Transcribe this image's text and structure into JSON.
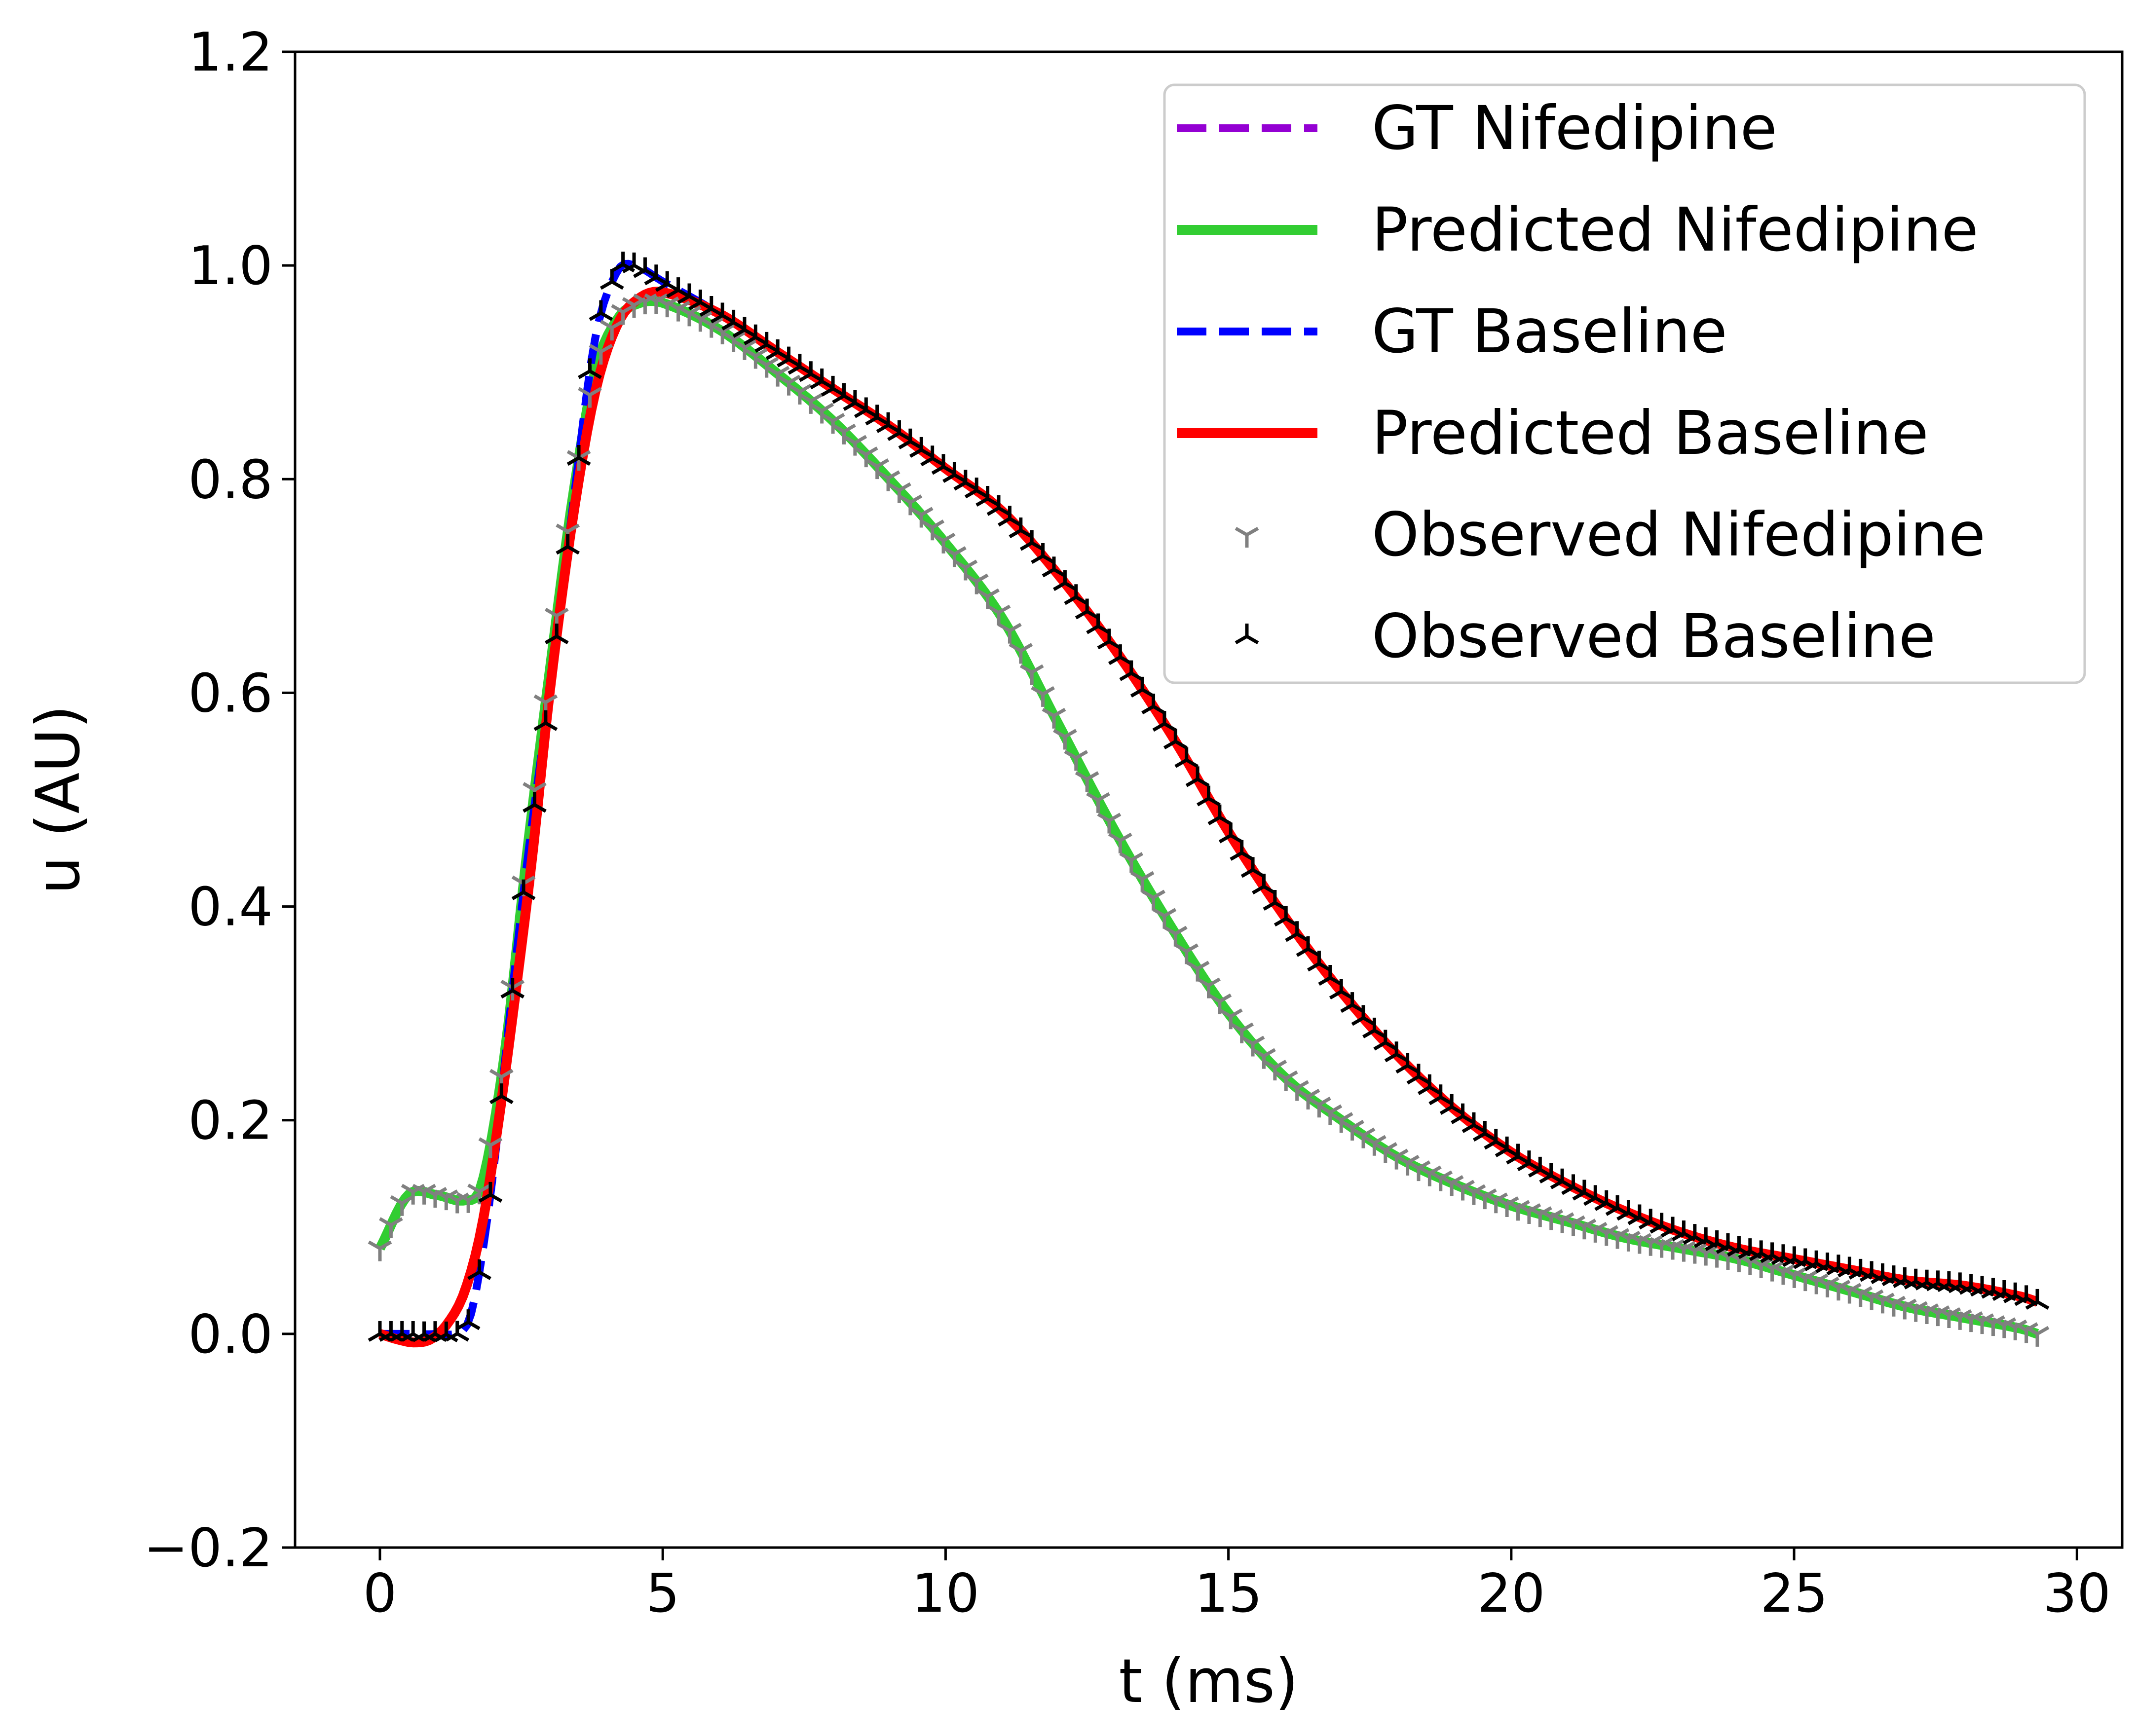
{
  "chart_data": {
    "type": "line",
    "xlabel": "t (ms)",
    "ylabel": "u (AU)",
    "xlim": [
      -1.5,
      30.8
    ],
    "ylim": [
      -0.2,
      1.2
    ],
    "xticks": [
      0,
      5,
      10,
      15,
      20,
      25,
      30
    ],
    "xtick_labels": [
      "0",
      "5",
      "10",
      "15",
      "20",
      "25",
      "30"
    ],
    "yticks": [
      -0.2,
      0.0,
      0.2,
      0.4,
      0.6,
      0.8,
      1.0,
      1.2
    ],
    "ytick_labels": [
      "−0.2",
      "0.0",
      "0.2",
      "0.4",
      "0.6",
      "0.8",
      "1.0",
      "1.2"
    ],
    "grid": false,
    "legend_position": "top-right",
    "series": [
      {
        "name": "GT Nifedipine",
        "style": "dashed",
        "color": "#9400D3",
        "x": [
          0,
          0.5,
          1,
          1.5,
          1.8,
          2.2,
          2.6,
          3,
          3.4,
          3.8,
          4.2,
          4.6,
          5,
          6,
          7,
          8,
          9,
          10,
          11,
          12,
          13,
          14,
          15,
          16,
          17,
          18,
          19,
          20,
          21,
          22,
          23,
          24,
          25,
          26,
          27,
          28,
          29,
          29.3
        ],
        "y": [
          0.08,
          0.13,
          0.13,
          0.125,
          0.14,
          0.26,
          0.45,
          0.62,
          0.78,
          0.9,
          0.95,
          0.965,
          0.965,
          0.94,
          0.9,
          0.855,
          0.8,
          0.74,
          0.67,
          0.57,
          0.47,
          0.38,
          0.3,
          0.24,
          0.2,
          0.165,
          0.14,
          0.12,
          0.105,
          0.09,
          0.08,
          0.07,
          0.055,
          0.04,
          0.025,
          0.015,
          0.005,
          0.0
        ]
      },
      {
        "name": "Predicted Nifedipine",
        "style": "solid",
        "color": "#32CD32",
        "x": [
          0,
          0.5,
          1,
          1.5,
          1.8,
          2.2,
          2.6,
          3,
          3.4,
          3.8,
          4.2,
          4.6,
          5,
          6,
          7,
          8,
          9,
          10,
          11,
          12,
          13,
          14,
          15,
          16,
          17,
          18,
          19,
          20,
          21,
          22,
          23,
          24,
          25,
          26,
          27,
          28,
          29,
          29.3
        ],
        "y": [
          0.08,
          0.13,
          0.13,
          0.125,
          0.14,
          0.26,
          0.45,
          0.62,
          0.78,
          0.9,
          0.95,
          0.965,
          0.965,
          0.94,
          0.9,
          0.855,
          0.8,
          0.74,
          0.67,
          0.57,
          0.47,
          0.38,
          0.3,
          0.24,
          0.2,
          0.165,
          0.14,
          0.12,
          0.105,
          0.09,
          0.08,
          0.07,
          0.055,
          0.04,
          0.025,
          0.015,
          0.005,
          0.0
        ]
      },
      {
        "name": "GT Baseline",
        "style": "dashed",
        "color": "#0000FF",
        "x": [
          0,
          0.5,
          1,
          1.5,
          1.7,
          2,
          2.3,
          2.6,
          3,
          3.4,
          3.8,
          4.2,
          4.5,
          5,
          6,
          7,
          8,
          9,
          10,
          11,
          12,
          13,
          14,
          15,
          16,
          17,
          18,
          19,
          20,
          21,
          22,
          23,
          24,
          25,
          26,
          27,
          28,
          29,
          29.3
        ],
        "y": [
          0.0,
          0.0,
          0.0,
          0.005,
          0.04,
          0.15,
          0.3,
          0.44,
          0.6,
          0.77,
          0.93,
          0.995,
          1.0,
          0.985,
          0.955,
          0.92,
          0.885,
          0.85,
          0.81,
          0.77,
          0.71,
          0.64,
          0.56,
          0.47,
          0.39,
          0.32,
          0.26,
          0.21,
          0.17,
          0.14,
          0.115,
          0.095,
          0.08,
          0.07,
          0.06,
          0.05,
          0.045,
          0.035,
          0.03
        ]
      },
      {
        "name": "Predicted Baseline",
        "style": "solid",
        "color": "#FF0000",
        "x": [
          0,
          0.3,
          0.6,
          0.9,
          1.2,
          1.5,
          1.8,
          2.1,
          2.4,
          2.7,
          3,
          3.4,
          3.8,
          4.2,
          4.6,
          5,
          6,
          7,
          8,
          9,
          10,
          11,
          12,
          13,
          14,
          15,
          16,
          17,
          18,
          19,
          20,
          21,
          22,
          23,
          24,
          25,
          26,
          27,
          28,
          29,
          29.3
        ],
        "y": [
          0.0,
          -0.005,
          -0.008,
          -0.005,
          0.01,
          0.04,
          0.1,
          0.2,
          0.32,
          0.45,
          0.6,
          0.76,
          0.88,
          0.945,
          0.97,
          0.975,
          0.955,
          0.92,
          0.885,
          0.85,
          0.81,
          0.77,
          0.71,
          0.64,
          0.56,
          0.47,
          0.39,
          0.32,
          0.26,
          0.21,
          0.17,
          0.14,
          0.115,
          0.095,
          0.08,
          0.07,
          0.06,
          0.05,
          0.045,
          0.035,
          0.03
        ]
      },
      {
        "name": "Observed Nifedipine",
        "style": "markers",
        "marker": "tri_down",
        "color": "#808080",
        "x": [
          0,
          0.5,
          1,
          1.5,
          1.8,
          2.2,
          2.6,
          3,
          3.4,
          3.8,
          4.2,
          4.6,
          5,
          6,
          7,
          8,
          9,
          10,
          11,
          12,
          13,
          14,
          15,
          16,
          17,
          18,
          19,
          20,
          21,
          22,
          23,
          24,
          25,
          26,
          27,
          28,
          29,
          29.3
        ],
        "y": [
          0.08,
          0.13,
          0.13,
          0.125,
          0.14,
          0.26,
          0.45,
          0.62,
          0.78,
          0.9,
          0.95,
          0.965,
          0.965,
          0.94,
          0.9,
          0.855,
          0.8,
          0.74,
          0.67,
          0.57,
          0.47,
          0.38,
          0.3,
          0.24,
          0.2,
          0.165,
          0.14,
          0.12,
          0.105,
          0.09,
          0.08,
          0.07,
          0.055,
          0.04,
          0.025,
          0.015,
          0.005,
          0.0
        ]
      },
      {
        "name": "Observed Baseline",
        "style": "markers",
        "marker": "tri_up",
        "color": "#000000",
        "x": [
          0,
          0.5,
          1,
          1.5,
          1.7,
          2,
          2.3,
          2.6,
          3,
          3.4,
          3.8,
          4.2,
          4.5,
          5,
          6,
          7,
          8,
          9,
          10,
          11,
          12,
          13,
          14,
          15,
          16,
          17,
          18,
          19,
          20,
          21,
          22,
          23,
          24,
          25,
          26,
          27,
          28,
          29,
          29.3
        ],
        "y": [
          0.0,
          0.0,
          0.0,
          0.005,
          0.04,
          0.15,
          0.3,
          0.44,
          0.6,
          0.77,
          0.93,
          0.995,
          1.0,
          0.985,
          0.955,
          0.92,
          0.885,
          0.85,
          0.81,
          0.77,
          0.71,
          0.64,
          0.56,
          0.47,
          0.39,
          0.32,
          0.26,
          0.21,
          0.17,
          0.14,
          0.115,
          0.095,
          0.08,
          0.07,
          0.06,
          0.05,
          0.045,
          0.035,
          0.03
        ]
      }
    ]
  }
}
